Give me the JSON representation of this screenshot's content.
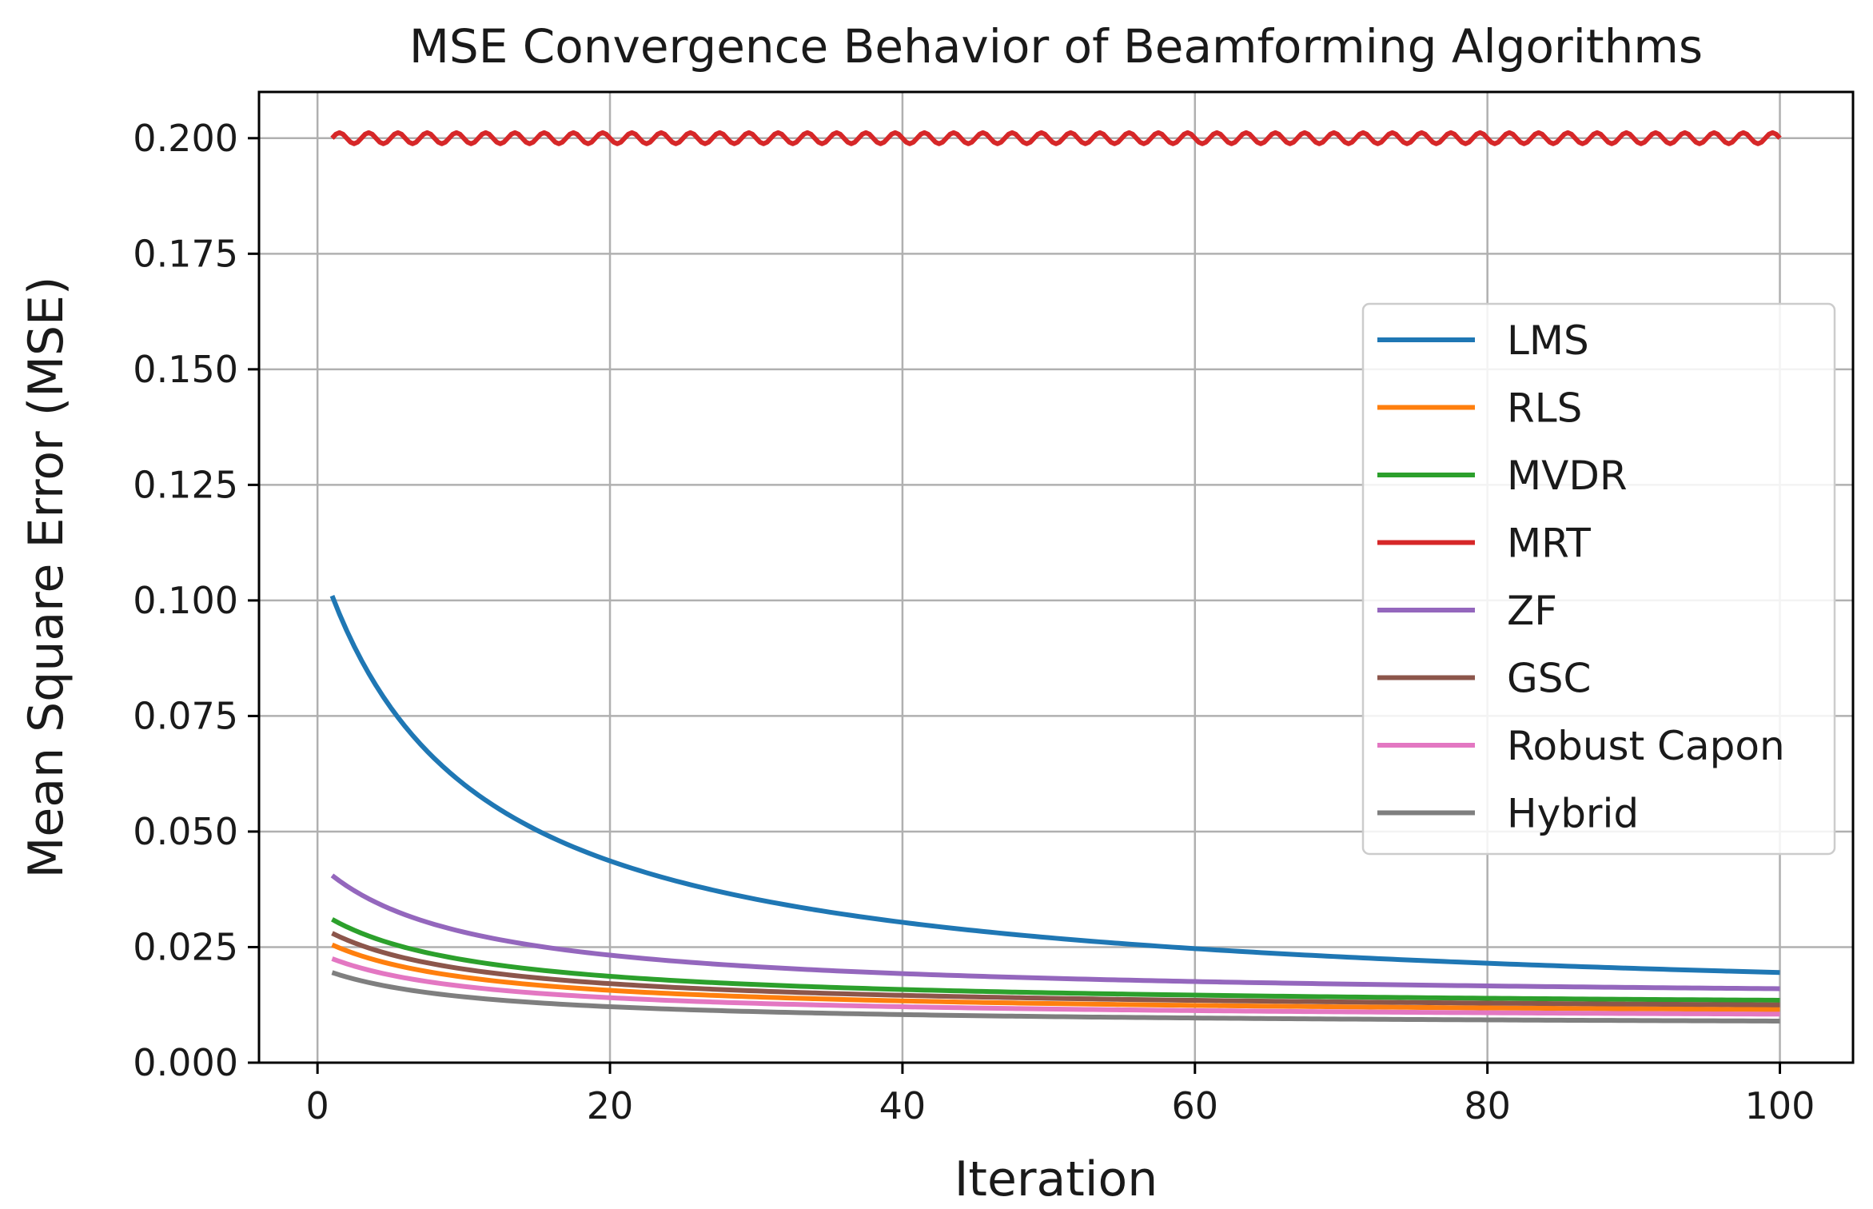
{
  "chart_data": {
    "type": "line",
    "title": "MSE Convergence Behavior of Beamforming Algorithms",
    "xlabel": "Iteration",
    "ylabel": "Mean Square Error (MSE)",
    "xlim": [
      -4,
      105
    ],
    "ylim": [
      0.0,
      0.21
    ],
    "grid": true,
    "legend_position": "center-right",
    "x_ticks": [
      0,
      20,
      40,
      60,
      80,
      100
    ],
    "x_tick_labels": [
      "0",
      "20",
      "40",
      "60",
      "80",
      "100"
    ],
    "y_ticks": [
      0.0,
      0.025,
      0.05,
      0.075,
      0.1,
      0.125,
      0.15,
      0.175,
      0.2
    ],
    "y_tick_labels": [
      "0.000",
      "0.025",
      "0.050",
      "0.075",
      "0.100",
      "0.125",
      "0.150",
      "0.175",
      "0.200"
    ],
    "x_range": [
      1,
      100
    ],
    "series": [
      {
        "name": "LMS",
        "color": "#1f77b4",
        "form": "decay",
        "start": 0.101,
        "end": 0.0195,
        "oscillation": 0
      },
      {
        "name": "RLS",
        "color": "#ff7f0e",
        "form": "decay",
        "start": 0.0255,
        "end": 0.0115,
        "oscillation": 0
      },
      {
        "name": "MVDR",
        "color": "#2ca02c",
        "form": "decay",
        "start": 0.031,
        "end": 0.0135,
        "oscillation": 0
      },
      {
        "name": "MRT",
        "color": "#d62728",
        "form": "flat",
        "start": 0.2,
        "end": 0.2,
        "oscillation": 0.0012
      },
      {
        "name": "ZF",
        "color": "#9467bd",
        "form": "decay",
        "start": 0.0405,
        "end": 0.016,
        "oscillation": 0
      },
      {
        "name": "GSC",
        "color": "#8c564b",
        "form": "decay",
        "start": 0.028,
        "end": 0.0125,
        "oscillation": 0
      },
      {
        "name": "Robust Capon",
        "color": "#e377c2",
        "form": "decay",
        "start": 0.0225,
        "end": 0.0105,
        "oscillation": 0
      },
      {
        "name": "Hybrid",
        "color": "#7f7f7f",
        "form": "decay",
        "start": 0.0195,
        "end": 0.009,
        "oscillation": 0
      }
    ]
  },
  "colors": {
    "axis": "#000000",
    "grid": "#b0b0b0",
    "background": "#ffffff"
  }
}
